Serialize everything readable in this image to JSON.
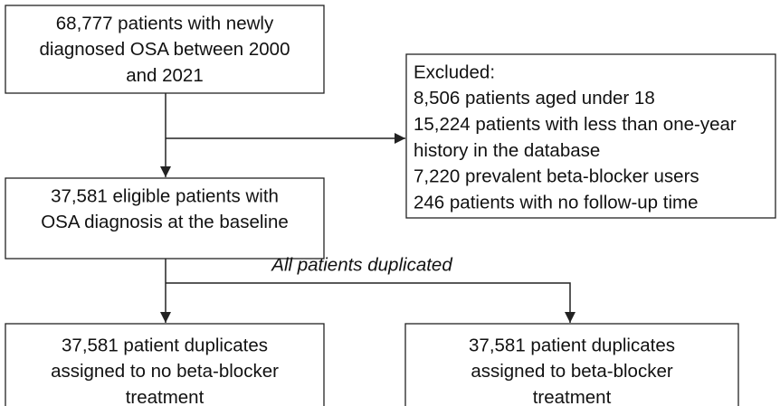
{
  "nodes": [
    {
      "lines": [
        "68,777 patients with newly",
        "diagnosed OSA between 2000",
        "and 2021"
      ]
    },
    {
      "lines": [
        "Excluded:",
        "8,506 patients aged under 18",
        "15,224 patients with less than one-year",
        "history in the database",
        "7,220 prevalent beta-blocker users",
        "246 patients with no follow-up time"
      ]
    },
    {
      "lines": [
        "37,581 eligible patients with",
        "OSA diagnosis at the baseline"
      ]
    },
    {
      "lines": [
        "37,581 patient duplicates",
        "assigned to no beta-blocker",
        "treatment"
      ]
    },
    {
      "lines": [
        "37,581 patient duplicates",
        "assigned to beta-blocker",
        "treatment"
      ]
    }
  ],
  "edge_label": "All patients duplicated"
}
